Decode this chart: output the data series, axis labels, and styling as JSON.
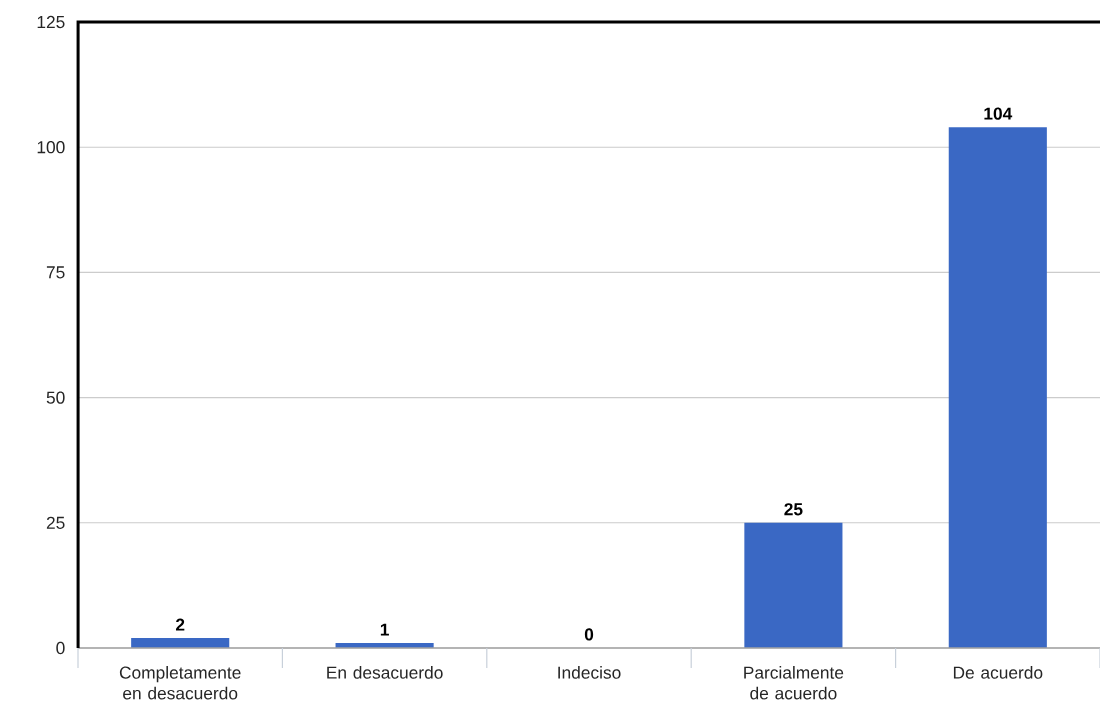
{
  "chart_data": {
    "type": "bar",
    "categories": [
      "Completamente en desacuerdo",
      "En desacuerdo",
      "Indeciso",
      "Parcialmente de acuerdo",
      "De acuerdo"
    ],
    "values": [
      2,
      1,
      0,
      25,
      104
    ],
    "color": "#3a68c4",
    "ylim": [
      0,
      125
    ],
    "yticks": [
      0,
      25,
      50,
      75,
      100,
      125
    ],
    "grid": "y",
    "data_labels": true
  }
}
